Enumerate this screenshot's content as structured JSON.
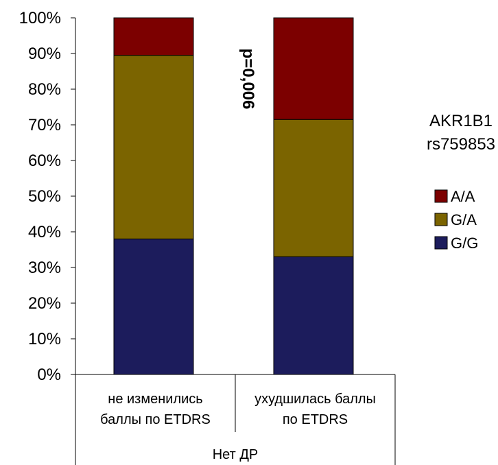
{
  "chart_data": {
    "type": "bar",
    "stacked": true,
    "percent": true,
    "categories": [
      "не изменились баллы по ETDRS",
      "ухудшилась баллы по ETDRS"
    ],
    "category_lines": [
      [
        "не изменились",
        "баллы по ETDRS"
      ],
      [
        "ухудшилась баллы",
        "по ETDRS"
      ]
    ],
    "group_label": "Нет ДР",
    "series": [
      {
        "name": "G/G",
        "values": [
          38,
          33
        ],
        "color": "#1c1c5c"
      },
      {
        "name": "G/A",
        "values": [
          51.5,
          38.5
        ],
        "color": "#7b6400"
      },
      {
        "name": "A/A",
        "values": [
          10.5,
          28.5
        ],
        "color": "#7c0000"
      }
    ],
    "ylim": [
      0,
      100
    ],
    "yticks": [
      0,
      10,
      20,
      30,
      40,
      50,
      60,
      70,
      80,
      90,
      100
    ],
    "ytick_labels": [
      "0%",
      "10%",
      "20%",
      "30%",
      "40%",
      "50%",
      "60%",
      "70%",
      "80%",
      "90%",
      "100%"
    ],
    "annotation": "p=0,006",
    "legend_title_lines": [
      "AKR1B1",
      "rs759853"
    ],
    "legend_order": [
      "A/A",
      "G/A",
      "G/G"
    ],
    "legend_position": "right",
    "grid": false
  }
}
